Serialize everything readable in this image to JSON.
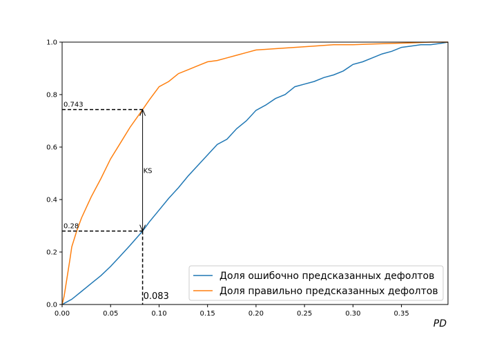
{
  "chart_data": {
    "type": "line",
    "xlabel": "PD",
    "ylabel": "",
    "xlim": [
      0,
      0.398
    ],
    "ylim": [
      0,
      1.0
    ],
    "x_ticks": [
      0.0,
      0.05,
      0.1,
      0.15,
      0.2,
      0.25,
      0.3,
      0.35
    ],
    "x_tick_labels": [
      "0.00",
      "0.05",
      "0.10",
      "0.15",
      "0.20",
      "0.25",
      "0.30",
      "0.35"
    ],
    "y_ticks": [
      0.0,
      0.2,
      0.4,
      0.6,
      0.8,
      1.0
    ],
    "y_tick_labels": [
      "0.0",
      "0.2",
      "0.4",
      "0.6",
      "0.8",
      "1.0"
    ],
    "grid": false,
    "legend_position": "bottom-right",
    "series": [
      {
        "name": "Доля ошибочно предсказанных дефолтов",
        "color": "#1f77b4",
        "x": [
          0.0,
          0.005,
          0.01,
          0.015,
          0.02,
          0.03,
          0.04,
          0.05,
          0.06,
          0.07,
          0.083,
          0.09,
          0.1,
          0.11,
          0.12,
          0.13,
          0.14,
          0.15,
          0.16,
          0.17,
          0.18,
          0.19,
          0.2,
          0.21,
          0.22,
          0.23,
          0.24,
          0.25,
          0.26,
          0.27,
          0.28,
          0.29,
          0.3,
          0.31,
          0.32,
          0.33,
          0.34,
          0.35,
          0.36,
          0.37,
          0.38,
          0.39,
          0.398
        ],
        "y": [
          0.0,
          0.01,
          0.02,
          0.035,
          0.05,
          0.08,
          0.11,
          0.145,
          0.185,
          0.225,
          0.28,
          0.315,
          0.36,
          0.405,
          0.445,
          0.49,
          0.53,
          0.57,
          0.61,
          0.63,
          0.67,
          0.7,
          0.74,
          0.76,
          0.785,
          0.8,
          0.83,
          0.84,
          0.85,
          0.865,
          0.875,
          0.89,
          0.915,
          0.925,
          0.94,
          0.955,
          0.965,
          0.98,
          0.985,
          0.99,
          0.99,
          0.995,
          1.0
        ]
      },
      {
        "name": "Доля правильно предсказанных дефолтов",
        "color": "#ff7f0e",
        "x": [
          0.0,
          0.002,
          0.005,
          0.008,
          0.01,
          0.015,
          0.02,
          0.03,
          0.04,
          0.05,
          0.06,
          0.07,
          0.083,
          0.09,
          0.1,
          0.11,
          0.12,
          0.13,
          0.14,
          0.15,
          0.16,
          0.17,
          0.18,
          0.19,
          0.2,
          0.22,
          0.24,
          0.26,
          0.28,
          0.3,
          0.32,
          0.34,
          0.36,
          0.38,
          0.398
        ],
        "y": [
          0.0,
          0.03,
          0.1,
          0.17,
          0.22,
          0.28,
          0.33,
          0.41,
          0.48,
          0.555,
          0.615,
          0.675,
          0.743,
          0.78,
          0.83,
          0.85,
          0.88,
          0.895,
          0.91,
          0.925,
          0.93,
          0.94,
          0.95,
          0.96,
          0.97,
          0.975,
          0.98,
          0.985,
          0.99,
          0.99,
          0.993,
          0.995,
          0.997,
          1.0,
          1.0
        ]
      }
    ],
    "annotations": {
      "ks_x": 0.083,
      "ks_x_label": "0.083",
      "upper_y": 0.743,
      "upper_label": "0.743",
      "lower_y": 0.28,
      "lower_label": "0.28",
      "ks_label": "KS"
    }
  }
}
